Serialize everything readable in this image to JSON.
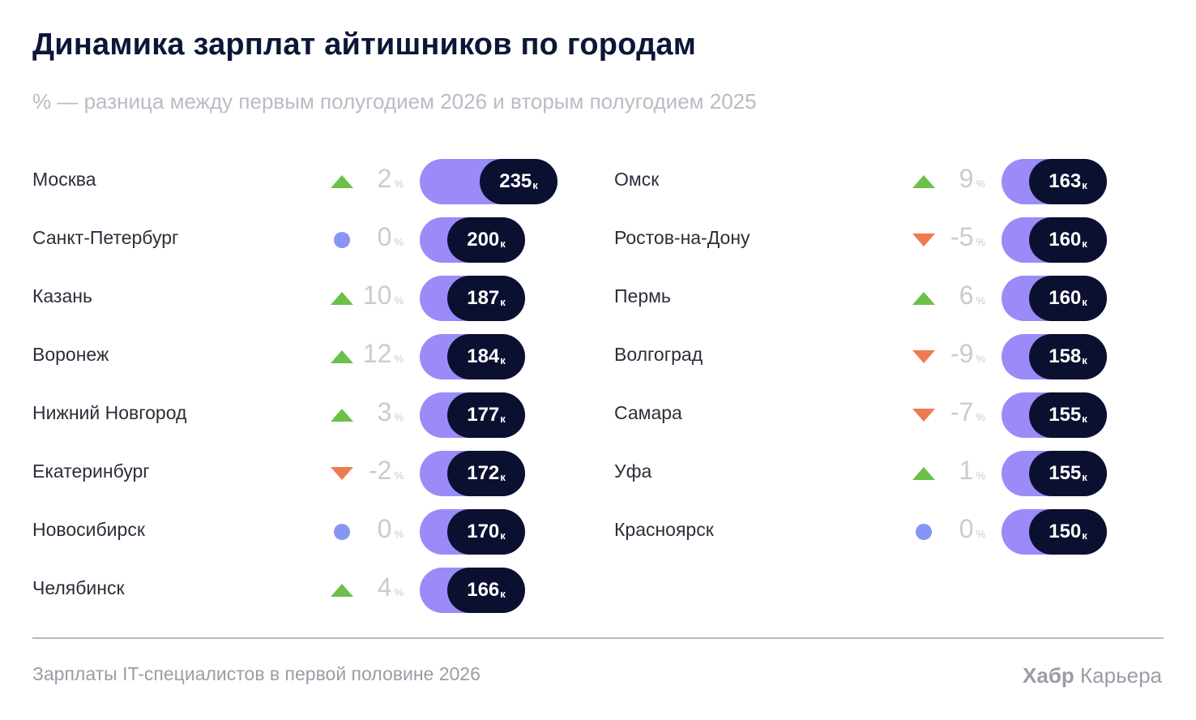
{
  "title": "Динамика зарплат айтишников по городам",
  "subtitle": "% — разница между первым полугодием 2026 и вторым полугодием 2025",
  "footer": {
    "source": "Зарплаты IT-специалистов в первой половине 2026",
    "brand_bold": "Хабр",
    "brand_rest": "Карьера"
  },
  "chart_data": {
    "type": "bar",
    "value_unit": "к",
    "change_unit": "%",
    "columns": [
      [
        {
          "city": "Москва",
          "value": 235,
          "change": 2,
          "trend": "up"
        },
        {
          "city": "Санкт-Петербург",
          "value": 200,
          "change": 0,
          "trend": "flat"
        },
        {
          "city": "Казань",
          "value": 187,
          "change": 10,
          "trend": "up"
        },
        {
          "city": "Воронеж",
          "value": 184,
          "change": 12,
          "trend": "up"
        },
        {
          "city": "Нижний Новгород",
          "value": 177,
          "change": 3,
          "trend": "up"
        },
        {
          "city": "Екатеринбург",
          "value": 172,
          "change": -2,
          "trend": "down"
        },
        {
          "city": "Новосибирск",
          "value": 170,
          "change": 0,
          "trend": "flat"
        },
        {
          "city": "Челябинск",
          "value": 166,
          "change": 4,
          "trend": "up"
        }
      ],
      [
        {
          "city": "Омск",
          "value": 163,
          "change": 9,
          "trend": "up"
        },
        {
          "city": "Ростов-на-Дону",
          "value": 160,
          "change": -5,
          "trend": "down"
        },
        {
          "city": "Пермь",
          "value": 160,
          "change": 6,
          "trend": "up"
        },
        {
          "city": "Волгоград",
          "value": 158,
          "change": -9,
          "trend": "down"
        },
        {
          "city": "Самара",
          "value": 155,
          "change": -7,
          "trend": "down"
        },
        {
          "city": "Уфа",
          "value": 155,
          "change": 1,
          "trend": "up"
        },
        {
          "city": "Красноярск",
          "value": 150,
          "change": 0,
          "trend": "flat"
        }
      ]
    ],
    "colors": {
      "bar": "#9a8bf8",
      "label_bg": "#0b1031",
      "up": "#6cc04a",
      "down": "#ef7a52",
      "flat": "#8795f4"
    }
  }
}
